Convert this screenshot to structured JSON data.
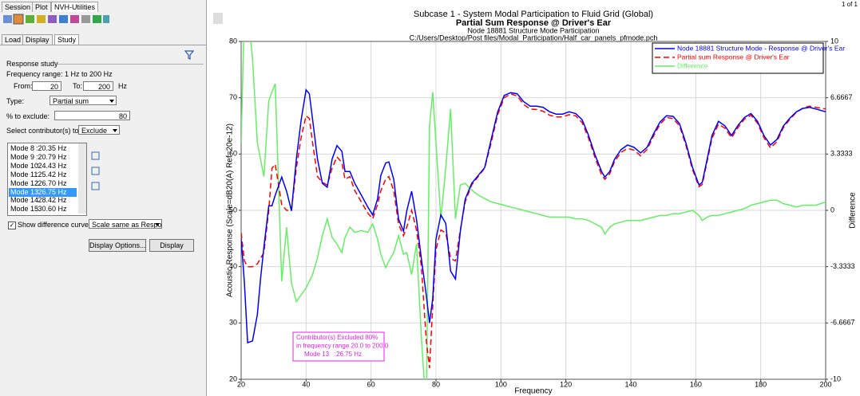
{
  "ui": {
    "top_tabs": [
      "Session",
      "Plot",
      "NVH-Utilities"
    ],
    "sub_tabs": [
      "Load",
      "Display",
      "Study"
    ],
    "section": "Response study",
    "frequency_range": "Frequency range: 1 Hz to 200 Hz",
    "from_label": "From:",
    "from_value": 20,
    "to_label": "To:",
    "to_value": 200,
    "unit": "Hz",
    "type_label": "Type:",
    "type_value": "Partial sum",
    "exclude_label": "% to exclude:",
    "exclude_value": 80,
    "select_label": "Select contributor(s) to:",
    "select_value": "Exclude",
    "modes": [
      {
        "name": "Mode 8",
        "freq": ":20.35 Hz"
      },
      {
        "name": "Mode 9",
        "freq": ":20.79 Hz"
      },
      {
        "name": "Mode 10",
        "freq": ":24.43 Hz"
      },
      {
        "name": "Mode 11",
        "freq": ":25.42 Hz"
      },
      {
        "name": "Mode 12",
        "freq": ":26.70 Hz"
      },
      {
        "name": "Mode 13",
        "freq": ":26.75 Hz"
      },
      {
        "name": "Mode 14",
        "freq": ":28.42 Hz"
      },
      {
        "name": "Mode 15",
        "freq": ":30.60 Hz"
      }
    ],
    "selected_mode": 5,
    "show_difference": "Show difference curve as:",
    "difference_mode": "Scale same as Respon",
    "buttons": [
      "Display Options...",
      "Display"
    ],
    "page_counter": "1 of 1"
  },
  "chart_data": {
    "type": "line",
    "title": "Subcase 1 - System Modal Participation to Fluid Grid (Global)",
    "subtitle": "Partial Sum Response @ Driver's Ear",
    "subtitle2": "Node 18881 Structure Mode Participation",
    "file": "C:/Users/Desktop/Post files/Modal_Participation/Half_car_panels_pfmode.pch",
    "xlabel": "Frequency",
    "ylabel": "Acoustic Response (Scale=dB20(A) Ref=20e-12)",
    "y2label": "Difference",
    "x": [
      20,
      21,
      22,
      23.5,
      25,
      26,
      27,
      28.5,
      29.5,
      30.5,
      32.5,
      34,
      35.5,
      37,
      38.5,
      40,
      41,
      42,
      43.5,
      45,
      46.5,
      48,
      49.5,
      51,
      52,
      53.5,
      55,
      57,
      59,
      60.5,
      62,
      63,
      64.5,
      65.5,
      67,
      68.5,
      70,
      71,
      72.5,
      74,
      75.5,
      77,
      78,
      79,
      80,
      81.5,
      83,
      84.5,
      86,
      87.5,
      89,
      91,
      93,
      95,
      97,
      99,
      101,
      103,
      105,
      107,
      109,
      111,
      113,
      115,
      117,
      119,
      121,
      123,
      125,
      127,
      129,
      131,
      132,
      133.5,
      135,
      137,
      139,
      141,
      143,
      145,
      147,
      149,
      151,
      153,
      155,
      157,
      159,
      161,
      162,
      163.5,
      165,
      167,
      169,
      171,
      173,
      175,
      177,
      179,
      181,
      183,
      185,
      187,
      189,
      191,
      193,
      195,
      197,
      200
    ],
    "series": [
      {
        "name": "Node 18881 Structure Mode - Response @ Driver's Ear",
        "color": "#0000ff",
        "dash": false,
        "values": [
          45,
          37.1,
          26.5,
          26.8,
          31.5,
          38,
          43.5,
          50.8,
          50.8,
          52.7,
          55.9,
          53.4,
          49.9,
          59.1,
          66.1,
          71.4,
          70.7,
          66.1,
          59.1,
          54.8,
          54.1,
          59.1,
          61.5,
          60.5,
          56.9,
          56.9,
          54.8,
          52.7,
          50.6,
          49.2,
          52,
          56.2,
          58.4,
          58.6,
          55.5,
          48.4,
          46.3,
          49.9,
          53.4,
          48.4,
          41.4,
          35,
          30,
          34.3,
          44.9,
          49.2,
          47.7,
          39.2,
          37.8,
          46.3,
          52,
          54.8,
          56.2,
          57.6,
          62.6,
          67.5,
          70.4,
          70.9,
          70.7,
          69.3,
          68.5,
          68.5,
          68.3,
          67.5,
          67.1,
          67.1,
          67.5,
          67.2,
          66.1,
          63.3,
          59.8,
          56.9,
          55.9,
          56.9,
          59.1,
          60.8,
          61.6,
          61.2,
          60.2,
          61.2,
          63.6,
          65.7,
          66.8,
          66.7,
          65.4,
          61.9,
          57.6,
          54.5,
          55,
          59.1,
          63.3,
          65.8,
          65,
          63.3,
          65.1,
          66.5,
          67.2,
          65.8,
          63.3,
          61.6,
          62.6,
          65,
          66.4,
          67.5,
          68.1,
          68.3,
          68,
          67.5
        ]
      },
      {
        "name": "Partial sum Response @ Driver's Ear",
        "color": "#ff0000",
        "dash": true,
        "values": [
          46,
          41,
          40,
          40,
          40.5,
          41.5,
          42.5,
          50,
          57.5,
          58.2,
          51,
          50,
          50,
          57.5,
          63,
          66.8,
          66.3,
          62,
          56,
          55,
          54.5,
          57.5,
          59.5,
          58.5,
          55.5,
          56,
          53.5,
          51.5,
          49.5,
          48.5,
          51,
          53.5,
          55.5,
          56,
          53.5,
          47.5,
          45.5,
          47,
          50,
          46.5,
          40,
          27,
          22,
          33,
          43,
          46.5,
          46,
          41.5,
          41,
          46.5,
          51.5,
          54.5,
          56,
          57.5,
          62,
          67,
          70,
          70.7,
          70.3,
          68.8,
          68,
          67.9,
          67.6,
          66.9,
          66.6,
          66.6,
          67,
          66.8,
          65.6,
          62.8,
          59.3,
          56.3,
          55.5,
          56.5,
          58.7,
          60.3,
          61,
          60.7,
          59.7,
          60.8,
          63.2,
          65.3,
          66.5,
          66.3,
          65,
          61.5,
          57.2,
          54.2,
          54.6,
          58.7,
          62.8,
          65.3,
          64.6,
          62.9,
          64.7,
          66.2,
          66.9,
          65.5,
          62.9,
          61.1,
          62.2,
          64.7,
          66.2,
          67.4,
          68.2,
          68.5,
          68.3,
          68
        ]
      },
      {
        "name": "Difference",
        "color": "#66ee66",
        "dash": false,
        "axis": "y2",
        "values": [
          4,
          12,
          12,
          9,
          4,
          3,
          2,
          6.5,
          7,
          7.5,
          -4.2,
          -1,
          -4.3,
          -5.4,
          -5,
          -4.6,
          -4.2,
          -3.8,
          -2.8,
          -1.5,
          -0.5,
          -1.6,
          -2,
          -2.5,
          -1.6,
          -1,
          -1.3,
          -1.2,
          -1.3,
          -0.8,
          -1.7,
          -2.6,
          -3.4,
          -3,
          -2.5,
          -1.5,
          -2.6,
          -2.5,
          -3.8,
          -2,
          -7.5,
          -12,
          5,
          7,
          4,
          -0.5,
          2.5,
          6,
          -0.5,
          1.5,
          1.6,
          1.2,
          0.9,
          0.7,
          0.5,
          0.4,
          0.3,
          0.2,
          0.1,
          0,
          -0.1,
          -0.2,
          -0.3,
          -0.4,
          -0.4,
          -0.4,
          -0.4,
          -0.5,
          -0.5,
          -0.6,
          -0.8,
          -1,
          -1.4,
          -1,
          -0.8,
          -0.7,
          -0.6,
          -0.6,
          -0.6,
          -0.5,
          -0.4,
          -0.3,
          -0.3,
          -0.2,
          -0.2,
          -0.1,
          0,
          -0.3,
          -0.6,
          -0.4,
          -0.3,
          -0.3,
          -0.2,
          -0.1,
          0,
          0.1,
          0.3,
          0.4,
          0.5,
          0.6,
          0.6,
          0.4,
          0.3,
          0.2,
          0.3,
          0.3,
          0.3,
          0.5
        ]
      }
    ],
    "xlim": [
      20,
      200
    ],
    "xticks": [
      20,
      40,
      60,
      80,
      100,
      120,
      140,
      160,
      180,
      200
    ],
    "ylim": [
      20,
      80
    ],
    "yticks": [
      20,
      30,
      40,
      50,
      60,
      70,
      80
    ],
    "y2lim": [
      -10,
      10
    ],
    "y2ticks": [
      -10,
      -6.6667,
      -3.3333,
      0,
      3.3333,
      6.6667,
      10
    ],
    "grid": true,
    "legend": "top-right",
    "annotation": {
      "color": "#e020e0",
      "lines": [
        "Contributor(s) Excluded 80%",
        "in frequency range 20.0 to 200.0",
        "Mode 13   :26.75 Hz"
      ]
    }
  }
}
